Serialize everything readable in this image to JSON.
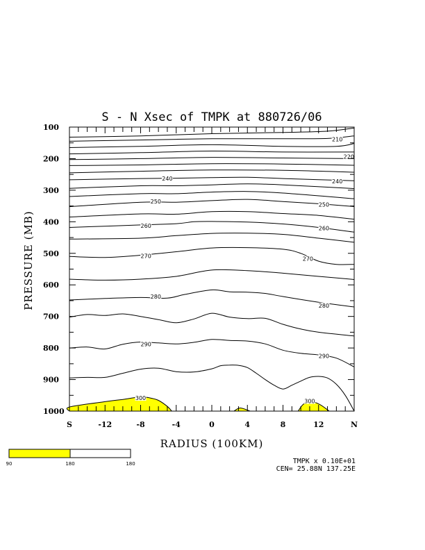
{
  "chart_data": {
    "type": "contour",
    "title": "S - N Xsec of  TMPK at 880726/06",
    "xlabel": "RADIUS (100KM)",
    "ylabel": "PRESSURE (MB)",
    "x_ticks": [
      {
        "label": "S",
        "value": -16
      },
      {
        "label": "-12",
        "value": -12
      },
      {
        "label": "-8",
        "value": -8
      },
      {
        "label": "-4",
        "value": -4
      },
      {
        "label": "0",
        "value": 0
      },
      {
        "label": "4",
        "value": 4
      },
      {
        "label": "8",
        "value": 8
      },
      {
        "label": "12",
        "value": 12
      },
      {
        "label": "N",
        "value": 16
      }
    ],
    "y_ticks": [
      100,
      200,
      300,
      400,
      500,
      600,
      700,
      800,
      900,
      1000
    ],
    "xlim": [
      -16,
      16
    ],
    "ylim": [
      100,
      1000
    ],
    "y_inverted": true,
    "contour_labels": [
      {
        "text": "210",
        "x": 14.1,
        "p": 138
      },
      {
        "text": "220",
        "x": 15.4,
        "p": 193
      },
      {
        "text": "240",
        "x": -5.0,
        "p": 263
      },
      {
        "text": "240",
        "x": 14.1,
        "p": 272
      },
      {
        "text": "250",
        "x": -6.3,
        "p": 335
      },
      {
        "text": "250",
        "x": 12.6,
        "p": 345
      },
      {
        "text": "260",
        "x": -7.4,
        "p": 413
      },
      {
        "text": "260",
        "x": 12.6,
        "p": 420
      },
      {
        "text": "270",
        "x": -7.4,
        "p": 508
      },
      {
        "text": "270",
        "x": 10.8,
        "p": 517
      },
      {
        "text": "280",
        "x": -6.3,
        "p": 637
      },
      {
        "text": "280",
        "x": 12.6,
        "p": 665
      },
      {
        "text": "290",
        "x": -7.4,
        "p": 788
      },
      {
        "text": "290",
        "x": 12.6,
        "p": 825
      },
      {
        "text": "300",
        "x": -8.0,
        "p": 958
      },
      {
        "text": "300",
        "x": 11.0,
        "p": 968
      }
    ],
    "contours": [
      [
        [
          -16,
          132
        ],
        [
          -8,
          128
        ],
        [
          0,
          121
        ],
        [
          8,
          117
        ],
        [
          13,
          113
        ],
        [
          16,
          103
        ]
      ],
      [
        [
          -16,
          145
        ],
        [
          -8,
          141
        ],
        [
          0,
          137
        ],
        [
          8,
          137
        ],
        [
          13,
          136
        ],
        [
          16,
          128
        ]
      ],
      [
        [
          -16,
          165
        ],
        [
          -8,
          161
        ],
        [
          0,
          156
        ],
        [
          8,
          161
        ],
        [
          14,
          161
        ],
        [
          16,
          152
        ]
      ],
      [
        [
          -16,
          185
        ],
        [
          -8,
          181
        ],
        [
          0,
          176
        ],
        [
          8,
          179
        ],
        [
          16,
          179
        ]
      ],
      [
        [
          -16,
          203
        ],
        [
          -8,
          200
        ],
        [
          0,
          196
        ],
        [
          8,
          198
        ],
        [
          16,
          200
        ]
      ],
      [
        [
          -16,
          222
        ],
        [
          -8,
          220
        ],
        [
          0,
          216
        ],
        [
          8,
          217
        ],
        [
          16,
          221
        ]
      ],
      [
        [
          -16,
          245
        ],
        [
          -8,
          240
        ],
        [
          0,
          236
        ],
        [
          8,
          237
        ],
        [
          16,
          243
        ]
      ],
      [
        [
          -16,
          267
        ],
        [
          -8,
          263
        ],
        [
          -4,
          262
        ],
        [
          0,
          260
        ],
        [
          4,
          259
        ],
        [
          8,
          263
        ],
        [
          16,
          270
        ]
      ],
      [
        [
          -16,
          294
        ],
        [
          -8,
          286
        ],
        [
          -4,
          286
        ],
        [
          0,
          283
        ],
        [
          4,
          280
        ],
        [
          8,
          283
        ],
        [
          16,
          295
        ]
      ],
      [
        [
          -16,
          320
        ],
        [
          -8,
          311
        ],
        [
          -4,
          311
        ],
        [
          0,
          306
        ],
        [
          4,
          304
        ],
        [
          8,
          309
        ],
        [
          16,
          327
        ]
      ],
      [
        [
          -16,
          352
        ],
        [
          -8,
          338
        ],
        [
          -4,
          338
        ],
        [
          0,
          333
        ],
        [
          4,
          329
        ],
        [
          8,
          336
        ],
        [
          12,
          343
        ],
        [
          16,
          352
        ]
      ],
      [
        [
          -16,
          385
        ],
        [
          -8,
          375
        ],
        [
          -4,
          376
        ],
        [
          0,
          368
        ],
        [
          4,
          368
        ],
        [
          8,
          374
        ],
        [
          12,
          380
        ],
        [
          16,
          392
        ]
      ],
      [
        [
          -16,
          418
        ],
        [
          -8,
          410
        ],
        [
          -4,
          406
        ],
        [
          -2,
          400
        ],
        [
          0,
          399
        ],
        [
          4,
          401
        ],
        [
          8,
          407
        ],
        [
          12,
          418
        ],
        [
          16,
          433
        ]
      ],
      [
        [
          -16,
          455
        ],
        [
          -8,
          452
        ],
        [
          -4,
          444
        ],
        [
          0,
          437
        ],
        [
          4,
          436
        ],
        [
          8,
          440
        ],
        [
          12,
          452
        ],
        [
          16,
          465
        ]
      ],
      [
        [
          -16,
          510
        ],
        [
          -12,
          513
        ],
        [
          -8,
          506
        ],
        [
          -4,
          495
        ],
        [
          0,
          483
        ],
        [
          4,
          482
        ],
        [
          8,
          487
        ],
        [
          10,
          500
        ],
        [
          12,
          525
        ],
        [
          14,
          535
        ],
        [
          16,
          535
        ]
      ],
      [
        [
          -16,
          582
        ],
        [
          -12,
          585
        ],
        [
          -8,
          582
        ],
        [
          -4,
          573
        ],
        [
          0,
          553
        ],
        [
          4,
          555
        ],
        [
          8,
          563
        ],
        [
          12,
          573
        ],
        [
          16,
          583
        ]
      ],
      [
        [
          -16,
          648
        ],
        [
          -12,
          643
        ],
        [
          -8,
          640
        ],
        [
          -5,
          642
        ],
        [
          -3,
          630
        ],
        [
          0,
          616
        ],
        [
          2,
          622
        ],
        [
          4,
          623
        ],
        [
          6,
          627
        ],
        [
          8,
          637
        ],
        [
          12,
          655
        ],
        [
          16,
          670
        ]
      ],
      [
        [
          -16,
          702
        ],
        [
          -14,
          694
        ],
        [
          -12,
          697
        ],
        [
          -10,
          692
        ],
        [
          -8,
          700
        ],
        [
          -6,
          710
        ],
        [
          -4,
          720
        ],
        [
          -2,
          708
        ],
        [
          0,
          690
        ],
        [
          2,
          702
        ],
        [
          4,
          707
        ],
        [
          6,
          706
        ],
        [
          8,
          725
        ],
        [
          10,
          740
        ],
        [
          12,
          750
        ],
        [
          16,
          762
        ]
      ],
      [
        [
          -16,
          800
        ],
        [
          -14,
          797
        ],
        [
          -12,
          803
        ],
        [
          -10,
          788
        ],
        [
          -8,
          781
        ],
        [
          -6,
          784
        ],
        [
          -4,
          787
        ],
        [
          -2,
          782
        ],
        [
          0,
          773
        ],
        [
          2,
          776
        ],
        [
          4,
          778
        ],
        [
          6,
          787
        ],
        [
          8,
          807
        ],
        [
          10,
          817
        ],
        [
          12,
          822
        ],
        [
          14,
          832
        ],
        [
          16,
          860
        ]
      ],
      [
        [
          -16,
          895
        ],
        [
          -14,
          893
        ],
        [
          -12,
          893
        ],
        [
          -10,
          880
        ],
        [
          -8,
          867
        ],
        [
          -6,
          864
        ],
        [
          -4,
          875
        ],
        [
          -2,
          876
        ],
        [
          0,
          866
        ],
        [
          1,
          856
        ],
        [
          2,
          854
        ],
        [
          3,
          855
        ],
        [
          4,
          862
        ],
        [
          5,
          880
        ],
        [
          6,
          900
        ],
        [
          7,
          918
        ],
        [
          8,
          930
        ],
        [
          9,
          918
        ],
        [
          10,
          905
        ],
        [
          11,
          893
        ],
        [
          12,
          890
        ],
        [
          13,
          895
        ],
        [
          14,
          915
        ],
        [
          15,
          950
        ],
        [
          16,
          1000
        ]
      ]
    ],
    "shaded_300_regions": [
      [
        [
          -16,
          1000
        ],
        [
          -16,
          987
        ],
        [
          -12,
          970
        ],
        [
          -10,
          963
        ],
        [
          -8,
          955
        ],
        [
          -7,
          958
        ],
        [
          -6,
          966
        ],
        [
          -5,
          985
        ],
        [
          -4.5,
          1000
        ]
      ],
      [
        [
          2.5,
          1000
        ],
        [
          3.2,
          990
        ],
        [
          4.3,
          1000
        ]
      ],
      [
        [
          9.7,
          1000
        ],
        [
          10.3,
          978
        ],
        [
          11.2,
          970
        ],
        [
          12.2,
          980
        ],
        [
          13.2,
          1000
        ]
      ]
    ],
    "colorbar": {
      "labels": [
        "90",
        "180",
        "180"
      ],
      "colors": [
        "#ffff00",
        "#ffffff"
      ]
    },
    "footer": {
      "line1": "TMPK x  0.10E+01",
      "line2": "CEN= 25.88N  137.25E"
    },
    "colors": {
      "shade": "#ffff00",
      "lines": "#000000"
    }
  }
}
